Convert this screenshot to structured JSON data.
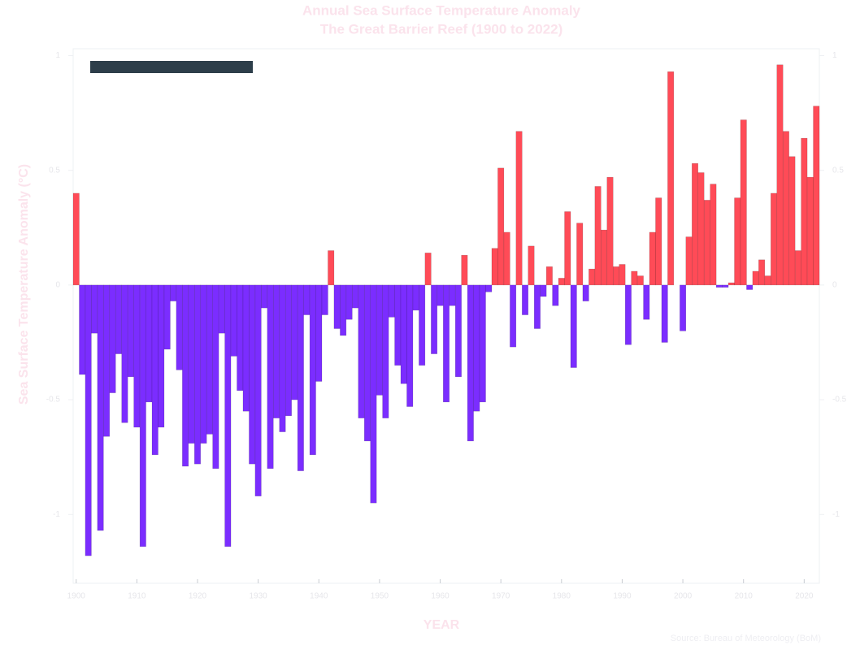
{
  "chart_data": {
    "type": "bar",
    "title": "Annual Sea Surface Temperature Anomaly",
    "subtitle": "The Great Barrier Reef (1900 to 2022)",
    "xlabel": "YEAR",
    "ylabel": "Sea Surface Temperature Anomaly (°C)",
    "source": "Source: Bureau of Meteorology (BoM)",
    "x": [
      1900,
      1901,
      1902,
      1903,
      1904,
      1905,
      1906,
      1907,
      1908,
      1909,
      1910,
      1911,
      1912,
      1913,
      1914,
      1915,
      1916,
      1917,
      1918,
      1919,
      1920,
      1921,
      1922,
      1923,
      1924,
      1925,
      1926,
      1927,
      1928,
      1929,
      1930,
      1931,
      1932,
      1933,
      1934,
      1935,
      1936,
      1937,
      1938,
      1939,
      1940,
      1941,
      1942,
      1943,
      1944,
      1945,
      1946,
      1947,
      1948,
      1949,
      1950,
      1951,
      1952,
      1953,
      1954,
      1955,
      1956,
      1957,
      1958,
      1959,
      1960,
      1961,
      1962,
      1963,
      1964,
      1965,
      1966,
      1967,
      1968,
      1969,
      1970,
      1971,
      1972,
      1973,
      1974,
      1975,
      1976,
      1977,
      1978,
      1979,
      1980,
      1981,
      1982,
      1983,
      1984,
      1985,
      1986,
      1987,
      1988,
      1989,
      1990,
      1991,
      1992,
      1993,
      1994,
      1995,
      1996,
      1997,
      1998,
      1999,
      2000,
      2001,
      2002,
      2003,
      2004,
      2005,
      2006,
      2007,
      2008,
      2009,
      2010,
      2011,
      2012,
      2013,
      2014,
      2015,
      2016,
      2017,
      2018,
      2019,
      2020,
      2021,
      2022
    ],
    "values": [
      0.4,
      -0.39,
      -1.18,
      -0.21,
      -1.07,
      -0.66,
      -0.47,
      -0.3,
      -0.6,
      -0.4,
      -0.62,
      -1.14,
      -0.51,
      -0.74,
      -0.62,
      -0.28,
      -0.07,
      -0.37,
      -0.79,
      -0.69,
      -0.78,
      -0.69,
      -0.65,
      -0.8,
      -0.21,
      -1.14,
      -0.31,
      -0.46,
      -0.55,
      -0.78,
      -0.92,
      -0.1,
      -0.8,
      -0.58,
      -0.64,
      -0.57,
      -0.5,
      -0.81,
      -0.13,
      -0.74,
      -0.42,
      -0.13,
      0.15,
      -0.19,
      -0.22,
      -0.15,
      -0.1,
      -0.58,
      -0.68,
      -0.95,
      -0.48,
      -0.58,
      -0.14,
      -0.35,
      -0.43,
      -0.53,
      -0.11,
      -0.35,
      0.14,
      -0.3,
      -0.09,
      -0.51,
      -0.09,
      -0.4,
      0.13,
      -0.68,
      -0.55,
      -0.51,
      -0.03,
      0.16,
      0.51,
      0.23,
      -0.27,
      0.67,
      -0.13,
      0.17,
      -0.19,
      -0.05,
      0.08,
      -0.09,
      0.03,
      0.32,
      -0.36,
      0.27,
      -0.07,
      0.07,
      0.43,
      0.24,
      0.47,
      0.08,
      0.09,
      -0.26,
      0.06,
      0.04,
      -0.15,
      0.23,
      0.38,
      -0.25,
      0.93,
      0,
      -0.2,
      0.21,
      0.53,
      0.49,
      0.37,
      0.44,
      -0.01,
      -0.01,
      0.01,
      0.38,
      0.72,
      -0.02,
      0.06,
      0.11,
      0.04,
      0.4,
      0.96,
      0.67,
      0.56,
      0.15,
      0.64,
      0.47,
      0.78
    ],
    "positive_color": "#ff4b57",
    "negative_color": "#7b2dff",
    "xlim": [
      1899.5,
      2022.5
    ],
    "xticks": [
      1900,
      1910,
      1920,
      1930,
      1940,
      1950,
      1960,
      1970,
      1980,
      1990,
      2000,
      2010,
      2020
    ],
    "ylim": [
      -1.3,
      1.03
    ],
    "yticks": [
      -1,
      -0.5,
      0,
      0.5,
      1
    ]
  }
}
